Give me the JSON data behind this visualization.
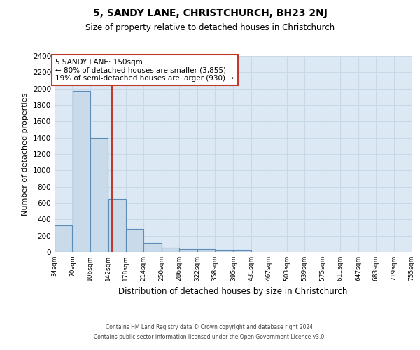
{
  "title": "5, SANDY LANE, CHRISTCHURCH, BH23 2NJ",
  "subtitle": "Size of property relative to detached houses in Christchurch",
  "xlabel": "Distribution of detached houses by size in Christchurch",
  "ylabel": "Number of detached properties",
  "bin_edges": [
    34,
    70,
    106,
    142,
    178,
    214,
    250,
    286,
    322,
    358,
    395,
    431,
    467,
    503,
    539,
    575,
    611,
    647,
    683,
    719,
    755
  ],
  "bin_counts": [
    325,
    1975,
    1400,
    650,
    280,
    110,
    50,
    35,
    35,
    25,
    25,
    0,
    0,
    0,
    0,
    0,
    0,
    0,
    0,
    0
  ],
  "property_size": 150,
  "bar_facecolor": "#c9daea",
  "bar_edgecolor": "#5b8db8",
  "redline_color": "#c0392b",
  "annotation_text_line1": "5 SANDY LANE: 150sqm",
  "annotation_text_line2": "← 80% of detached houses are smaller (3,855)",
  "annotation_text_line3": "19% of semi-detached houses are larger (930) →",
  "annotation_box_edgecolor": "#c0392b",
  "grid_color": "#c8d8e8",
  "bg_color": "#dce9f5",
  "ylim": [
    0,
    2400
  ],
  "yticks": [
    0,
    200,
    400,
    600,
    800,
    1000,
    1200,
    1400,
    1600,
    1800,
    2000,
    2200,
    2400
  ],
  "footer_line1": "Contains HM Land Registry data © Crown copyright and database right 2024.",
  "footer_line2": "Contains public sector information licensed under the Open Government Licence v3.0."
}
